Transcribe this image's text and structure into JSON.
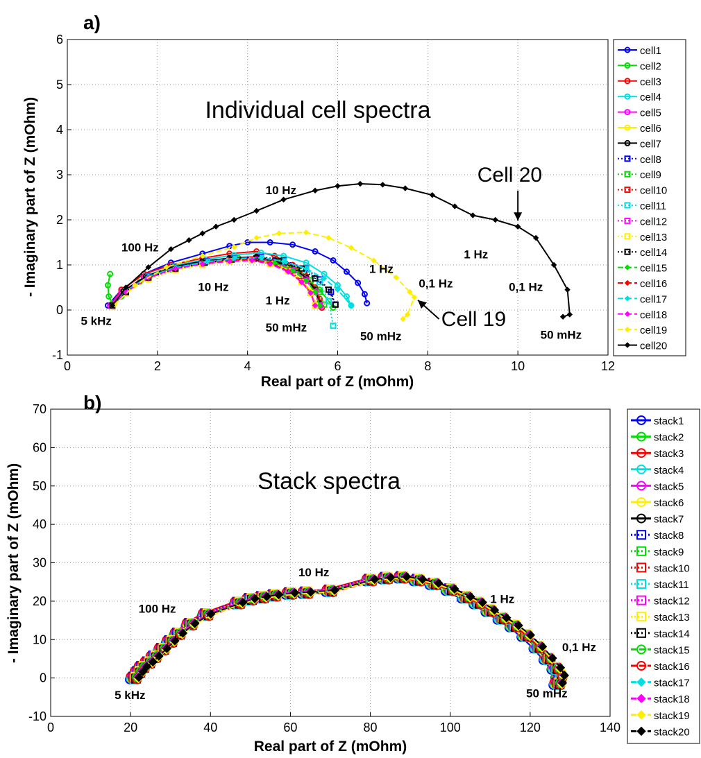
{
  "colors": {
    "cell1": "#0000ff",
    "cell2": "#00dd00",
    "cell3": "#ff0000",
    "cell4": "#00e0e0",
    "cell5": "#ff00ff",
    "cell6": "#ffee00",
    "cell7": "#000000"
  },
  "chart_data": [
    {
      "panel_label": "a)",
      "type": "line",
      "title": "Individual cell spectra",
      "xlabel": "Real part of Z (mOhm)",
      "ylabel": "- Imaginary part of Z (mOhm)",
      "xlim": [
        0,
        12
      ],
      "ylim": [
        -1,
        6
      ],
      "xticks": [
        "0",
        "2",
        "4",
        "6",
        "8",
        "10",
        "12"
      ],
      "yticks": [
        "-1",
        "0",
        "1",
        "2",
        "3",
        "4",
        "5",
        "6"
      ],
      "grid": true,
      "legend": "right",
      "annotations": [
        {
          "text": "100 Hz",
          "x": 1.2,
          "y": 1.3
        },
        {
          "text": "10 Hz",
          "x": 2.9,
          "y": 0.42
        },
        {
          "text": "1 Hz",
          "x": 4.4,
          "y": 0.12
        },
        {
          "text": "5 kHz",
          "x": 0.3,
          "y": -0.33
        },
        {
          "text": "50 mHz",
          "x": 4.4,
          "y": -0.48
        },
        {
          "text": "10 Hz",
          "x": 4.4,
          "y": 2.57
        },
        {
          "text": "1 Hz",
          "x": 6.7,
          "y": 0.82
        },
        {
          "text": "0,1 Hz",
          "x": 7.8,
          "y": 0.5
        },
        {
          "text": "50 mHz",
          "x": 6.5,
          "y": -0.67
        },
        {
          "text": "Cell 19",
          "x": 8.3,
          "y": -0.35
        },
        {
          "text": "Cell 20",
          "x": 9.1,
          "y": 2.85
        },
        {
          "text": "1 Hz",
          "x": 8.8,
          "y": 1.15
        },
        {
          "text": "0,1 Hz",
          "x": 9.8,
          "y": 0.42
        },
        {
          "text": "50 mHz",
          "x": 10.5,
          "y": -0.64
        }
      ],
      "series": [
        {
          "name": "cell1",
          "color": "#0000ff",
          "dash": "solid",
          "marker": "o",
          "x": [
            0.9,
            1.2,
            1.7,
            2.3,
            3.0,
            3.6,
            4.0,
            4.5,
            5.0,
            5.5,
            5.9,
            6.2,
            6.45,
            6.6,
            6.65
          ],
          "y": [
            0.1,
            0.45,
            0.8,
            1.05,
            1.25,
            1.42,
            1.5,
            1.5,
            1.45,
            1.3,
            1.1,
            0.85,
            0.6,
            0.35,
            0.15
          ]
        },
        {
          "name": "cell2",
          "color": "#00dd00",
          "dash": "solid",
          "marker": "o",
          "x": [
            0.95,
            0.9,
            0.92,
            1.0,
            1.2,
            1.6,
            2.3,
            3.0,
            3.8,
            4.4,
            4.9,
            5.3,
            5.6,
            5.8,
            5.9
          ],
          "y": [
            0.8,
            0.55,
            0.3,
            0.15,
            0.3,
            0.62,
            0.9,
            1.05,
            1.15,
            1.1,
            0.95,
            0.7,
            0.45,
            0.2,
            0.05
          ]
        },
        {
          "name": "cell3",
          "color": "#ff0000",
          "dash": "solid",
          "marker": "o",
          "x": [
            0.95,
            1.2,
            1.7,
            2.3,
            3.0,
            3.6,
            4.2,
            4.6,
            5.0,
            5.3,
            5.5,
            5.6,
            5.65
          ],
          "y": [
            0.1,
            0.45,
            0.8,
            1.0,
            1.15,
            1.25,
            1.3,
            1.2,
            1.0,
            0.75,
            0.5,
            0.25,
            0.05
          ]
        },
        {
          "name": "cell4",
          "color": "#00e0e0",
          "dash": "solid",
          "marker": "o",
          "x": [
            1.0,
            1.25,
            1.75,
            2.35,
            3.05,
            3.7,
            4.3,
            4.8,
            5.3,
            5.7,
            6.0,
            6.2,
            6.3
          ],
          "y": [
            0.1,
            0.42,
            0.76,
            0.98,
            1.12,
            1.22,
            1.27,
            1.2,
            1.05,
            0.8,
            0.55,
            0.3,
            0.1
          ]
        },
        {
          "name": "cell5",
          "color": "#ff00ff",
          "dash": "solid",
          "marker": "o",
          "x": [
            0.95,
            1.2,
            1.7,
            2.3,
            3.0,
            3.6,
            4.2,
            4.6,
            5.0,
            5.3,
            5.5,
            5.6
          ],
          "y": [
            0.1,
            0.4,
            0.72,
            0.93,
            1.05,
            1.12,
            1.15,
            1.08,
            0.92,
            0.7,
            0.45,
            0.15
          ]
        },
        {
          "name": "cell6",
          "color": "#ffee00",
          "dash": "solid",
          "marker": "o",
          "x": [
            1.0,
            1.25,
            1.75,
            2.35,
            3.0,
            3.6,
            4.1,
            4.5,
            4.9,
            5.2,
            5.4,
            5.5
          ],
          "y": [
            0.1,
            0.4,
            0.7,
            0.9,
            1.02,
            1.1,
            1.12,
            1.05,
            0.9,
            0.68,
            0.42,
            0.15
          ]
        },
        {
          "name": "cell7",
          "color": "#000000",
          "dash": "solid",
          "marker": "o",
          "x": [
            1.0,
            1.25,
            1.75,
            2.35,
            3.0,
            3.6,
            4.2,
            4.6,
            5.0,
            5.3,
            5.5,
            5.6
          ],
          "y": [
            0.1,
            0.42,
            0.75,
            0.96,
            1.08,
            1.15,
            1.18,
            1.1,
            0.95,
            0.72,
            0.45,
            0.15
          ]
        },
        {
          "name": "cell8",
          "color": "#0000ff",
          "dash": "dot",
          "marker": "s",
          "x": [
            1.0,
            1.3,
            1.8,
            2.4,
            3.1,
            3.7,
            4.3,
            4.8,
            5.3,
            5.6,
            5.85,
            5.95
          ],
          "y": [
            0.1,
            0.42,
            0.75,
            0.95,
            1.08,
            1.15,
            1.18,
            1.1,
            0.92,
            0.68,
            0.4,
            0.12
          ]
        },
        {
          "name": "cell9",
          "color": "#00dd00",
          "dash": "dot",
          "marker": "s",
          "x": [
            1.0,
            1.3,
            1.8,
            2.4,
            3.05,
            3.65,
            4.2,
            4.7,
            5.1,
            5.4,
            5.6,
            5.7
          ],
          "y": [
            0.1,
            0.4,
            0.72,
            0.93,
            1.05,
            1.12,
            1.15,
            1.07,
            0.9,
            0.66,
            0.4,
            0.12
          ]
        },
        {
          "name": "cell10",
          "color": "#ff0000",
          "dash": "dot",
          "marker": "s",
          "x": [
            1.0,
            1.3,
            1.8,
            2.4,
            3.0,
            3.6,
            4.1,
            4.5,
            4.9,
            5.2,
            5.4,
            5.5
          ],
          "y": [
            0.08,
            0.38,
            0.7,
            0.9,
            1.02,
            1.1,
            1.12,
            1.04,
            0.88,
            0.64,
            0.38,
            0.1
          ]
        },
        {
          "name": "cell11",
          "color": "#00e0e0",
          "dash": "dot",
          "marker": "s",
          "x": [
            1.0,
            1.3,
            1.8,
            2.4,
            3.1,
            3.7,
            4.3,
            4.8,
            5.3,
            5.6,
            5.8,
            5.9
          ],
          "y": [
            0.1,
            0.42,
            0.74,
            0.94,
            1.07,
            1.14,
            1.16,
            1.08,
            0.9,
            0.62,
            0.2,
            -0.35
          ]
        },
        {
          "name": "cell12",
          "color": "#ff00ff",
          "dash": "dot",
          "marker": "s",
          "x": [
            1.0,
            1.3,
            1.8,
            2.4,
            3.0,
            3.6,
            4.2,
            4.6,
            5.0,
            5.3,
            5.5,
            5.6
          ],
          "y": [
            0.08,
            0.38,
            0.7,
            0.9,
            1.02,
            1.1,
            1.13,
            1.05,
            0.88,
            0.65,
            0.4,
            0.1
          ]
        },
        {
          "name": "cell13",
          "color": "#ffee00",
          "dash": "dot",
          "marker": "s",
          "x": [
            1.0,
            1.3,
            1.8,
            2.4,
            3.0,
            3.6,
            4.1,
            4.5,
            4.9,
            5.2,
            5.4,
            5.5
          ],
          "y": [
            0.08,
            0.38,
            0.68,
            0.88,
            1.0,
            1.08,
            1.1,
            1.02,
            0.86,
            0.62,
            0.38,
            0.1
          ]
        },
        {
          "name": "cell14",
          "color": "#000000",
          "dash": "dot",
          "marker": "s",
          "x": [
            1.0,
            1.3,
            1.8,
            2.4,
            3.05,
            3.65,
            4.2,
            4.7,
            5.2,
            5.5,
            5.8,
            5.95
          ],
          "y": [
            0.1,
            0.4,
            0.72,
            0.92,
            1.05,
            1.12,
            1.15,
            1.08,
            0.92,
            0.7,
            0.45,
            0.12
          ]
        },
        {
          "name": "cell15",
          "color": "#00dd00",
          "dash": "dash",
          "marker": "d",
          "x": [
            1.0,
            1.3,
            1.8,
            2.4,
            3.0,
            3.6,
            4.1,
            4.6,
            5.0,
            5.3,
            5.5,
            5.6
          ],
          "y": [
            0.1,
            0.4,
            0.72,
            0.92,
            1.04,
            1.1,
            1.12,
            1.05,
            0.88,
            0.65,
            0.4,
            0.1
          ]
        },
        {
          "name": "cell16",
          "color": "#ff0000",
          "dash": "dash",
          "marker": "d",
          "x": [
            1.0,
            1.3,
            1.8,
            2.4,
            3.0,
            3.6,
            4.1,
            4.5,
            4.9,
            5.2,
            5.4,
            5.5
          ],
          "y": [
            0.1,
            0.4,
            0.72,
            0.92,
            1.03,
            1.1,
            1.12,
            1.04,
            0.86,
            0.62,
            0.38,
            0.1
          ]
        },
        {
          "name": "cell17",
          "color": "#00e0e0",
          "dash": "dash",
          "marker": "d",
          "x": [
            1.0,
            1.3,
            1.8,
            2.4,
            3.1,
            3.7,
            4.3,
            4.8,
            5.3,
            5.7,
            6.0,
            6.3
          ],
          "y": [
            0.1,
            0.42,
            0.74,
            0.94,
            1.07,
            1.14,
            1.16,
            1.08,
            0.92,
            0.7,
            0.45,
            0.1
          ]
        },
        {
          "name": "cell18",
          "color": "#ff00ff",
          "dash": "dash",
          "marker": "d",
          "x": [
            1.0,
            1.3,
            1.8,
            2.4,
            3.0,
            3.6,
            4.1,
            4.5,
            4.9,
            5.2,
            5.4,
            5.5
          ],
          "y": [
            0.1,
            0.4,
            0.72,
            0.92,
            1.02,
            1.08,
            1.1,
            1.02,
            0.85,
            0.62,
            0.38,
            0.1
          ]
        },
        {
          "name": "cell19",
          "color": "#ffee00",
          "dash": "dash",
          "marker": "d",
          "x": [
            1.05,
            1.5,
            2.2,
            3.0,
            3.7,
            4.2,
            4.7,
            5.3,
            5.8,
            6.3,
            6.8,
            7.3,
            7.6,
            7.7,
            7.55,
            7.45
          ],
          "y": [
            0.12,
            0.55,
            0.95,
            1.2,
            1.4,
            1.6,
            1.7,
            1.72,
            1.6,
            1.38,
            1.1,
            0.72,
            0.4,
            0.28,
            -0.1,
            -0.2
          ]
        },
        {
          "name": "cell20",
          "color": "#000000",
          "dash": "solid",
          "marker": "d",
          "x": [
            1.0,
            1.3,
            1.8,
            2.3,
            2.7,
            3.0,
            3.3,
            3.7,
            4.2,
            4.8,
            5.5,
            6.0,
            6.5,
            7.0,
            7.5,
            8.1,
            8.6,
            9.0,
            9.5,
            10.0,
            10.4,
            10.8,
            11.1,
            11.15,
            11.0
          ],
          "y": [
            0.1,
            0.5,
            0.95,
            1.35,
            1.55,
            1.7,
            1.85,
            2.0,
            2.2,
            2.45,
            2.65,
            2.75,
            2.8,
            2.78,
            2.7,
            2.55,
            2.3,
            2.1,
            2.0,
            1.85,
            1.6,
            1.0,
            0.45,
            -0.1,
            -0.15
          ]
        }
      ]
    },
    {
      "panel_label": "b)",
      "type": "line",
      "title": "Stack spectra",
      "xlabel": "Real part of Z (mOhm)",
      "ylabel": "- Imaginary part of Z (mOhm)",
      "xlim": [
        0,
        140
      ],
      "ylim": [
        -10,
        70
      ],
      "xticks": [
        "0",
        "20",
        "40",
        "60",
        "80",
        "100",
        "120",
        "140"
      ],
      "yticks": [
        "-10",
        "0",
        "10",
        "20",
        "30",
        "40",
        "50",
        "60",
        "70"
      ],
      "grid": true,
      "legend": "right",
      "annotations": [
        {
          "text": "100 Hz",
          "x": 22,
          "y": 17
        },
        {
          "text": "10 Hz",
          "x": 62,
          "y": 26.5
        },
        {
          "text": "1 Hz",
          "x": 110,
          "y": 19.5
        },
        {
          "text": "0,1 Hz",
          "x": 128,
          "y": 7
        },
        {
          "text": "5 kHz",
          "x": 16,
          "y": -5.5
        },
        {
          "text": "50 mHz",
          "x": 119,
          "y": -5
        }
      ],
      "series_names": [
        "stack1",
        "stack2",
        "stack3",
        "stack4",
        "stack5",
        "stack6",
        "stack7",
        "stack8",
        "stack9",
        "stack10",
        "stack11",
        "stack12",
        "stack13",
        "stack14",
        "stack15",
        "stack16",
        "stack17",
        "stack18",
        "stack19",
        "stack20"
      ],
      "series_colors": [
        "#0000ff",
        "#00dd00",
        "#ff0000",
        "#00e0e0",
        "#ff00ff",
        "#ffee00",
        "#000000",
        "#0000ff",
        "#00dd00",
        "#ff0000",
        "#00e0e0",
        "#ff00ff",
        "#ffee00",
        "#000000",
        "#00dd00",
        "#ff0000",
        "#00e0e0",
        "#ff00ff",
        "#ffee00",
        "#000000"
      ],
      "series_dash": [
        "solid",
        "solid",
        "solid",
        "solid",
        "solid",
        "solid",
        "solid",
        "dot",
        "dot",
        "dot",
        "dot",
        "dot",
        "dot",
        "dot",
        "dash",
        "dash",
        "dash",
        "dash",
        "dash",
        "dash"
      ],
      "series_marker": [
        "o",
        "o",
        "o",
        "o",
        "o",
        "o",
        "o",
        "s",
        "s",
        "s",
        "s",
        "s",
        "s",
        "s",
        "o",
        "o",
        "d",
        "d",
        "d",
        "d"
      ],
      "common_x": [
        21,
        22,
        23,
        24.5,
        26,
        28,
        30,
        32,
        35,
        39,
        47,
        50,
        53,
        56,
        60,
        64,
        70,
        80,
        84,
        88,
        92,
        96,
        100,
        104,
        107,
        110,
        113,
        116,
        119,
        122,
        124.5,
        126.5,
        127.5,
        127
      ],
      "common_y": [
        0,
        1.5,
        2.8,
        4,
        5.5,
        7.5,
        9.5,
        11.5,
        14,
        16.5,
        19.5,
        20.5,
        21,
        21.5,
        22,
        22.2,
        22.7,
        25.5,
        26,
        26.2,
        25.5,
        24.5,
        23,
        21,
        19.5,
        17.5,
        15.5,
        13.5,
        11,
        8,
        5,
        2.5,
        0.5,
        -1.5
      ]
    }
  ]
}
